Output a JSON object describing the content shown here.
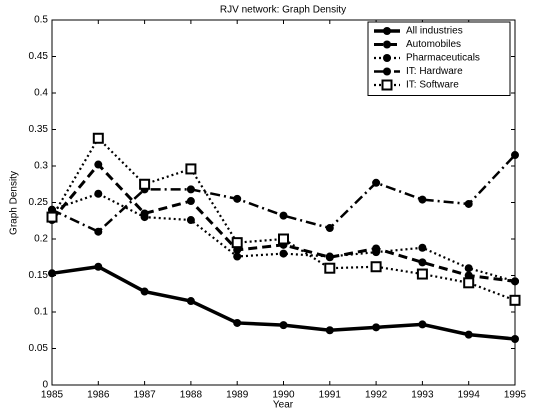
{
  "chart_data": {
    "type": "line",
    "title": "RJV network: Graph Density",
    "x_label": "Year",
    "y_label": "Graph Density",
    "x": [
      1985,
      1986,
      1987,
      1988,
      1989,
      1990,
      1991,
      1992,
      1993,
      1994,
      1995
    ],
    "xlim": [
      1985,
      1995
    ],
    "xticks": [
      1985,
      1986,
      1987,
      1988,
      1989,
      1990,
      1991,
      1992,
      1993,
      1994,
      1995
    ],
    "ylim": [
      0,
      0.5
    ],
    "yticks": [
      0,
      0.05,
      0.1,
      0.15,
      0.2,
      0.25,
      0.3,
      0.35,
      0.4,
      0.45,
      0.5
    ],
    "grid": false,
    "legend": "upper right",
    "series": [
      {
        "name": "All industries",
        "color": "#000000",
        "style": "solid",
        "marker": "circle",
        "values": [
          0.153,
          0.162,
          0.128,
          0.115,
          0.085,
          0.082,
          0.075,
          0.079,
          0.083,
          0.069,
          0.063
        ]
      },
      {
        "name": "Automobiles",
        "color": "#000000",
        "style": "dashed",
        "marker": "circle",
        "values": [
          0.226,
          0.302,
          0.235,
          0.252,
          0.185,
          0.192,
          0.175,
          0.187,
          0.168,
          0.15,
          0.142
        ]
      },
      {
        "name": "Pharmaceuticals",
        "color": "#000000",
        "style": "dotted",
        "marker": "circle",
        "values": [
          0.24,
          0.262,
          0.23,
          0.226,
          0.176,
          0.18,
          0.176,
          0.182,
          0.188,
          0.16,
          0.142
        ]
      },
      {
        "name": "IT: Hardware",
        "color": "#000000",
        "style": "dashdot",
        "marker": "circle",
        "values": [
          0.24,
          0.21,
          0.268,
          0.268,
          0.255,
          0.232,
          0.215,
          0.277,
          0.254,
          0.248,
          0.315
        ]
      },
      {
        "name": "IT: Software",
        "color": "#000000",
        "style": "dotted",
        "marker": "square",
        "values": [
          0.23,
          0.338,
          0.275,
          0.296,
          0.195,
          0.2,
          0.16,
          0.162,
          0.152,
          0.14,
          0.116
        ]
      }
    ]
  }
}
